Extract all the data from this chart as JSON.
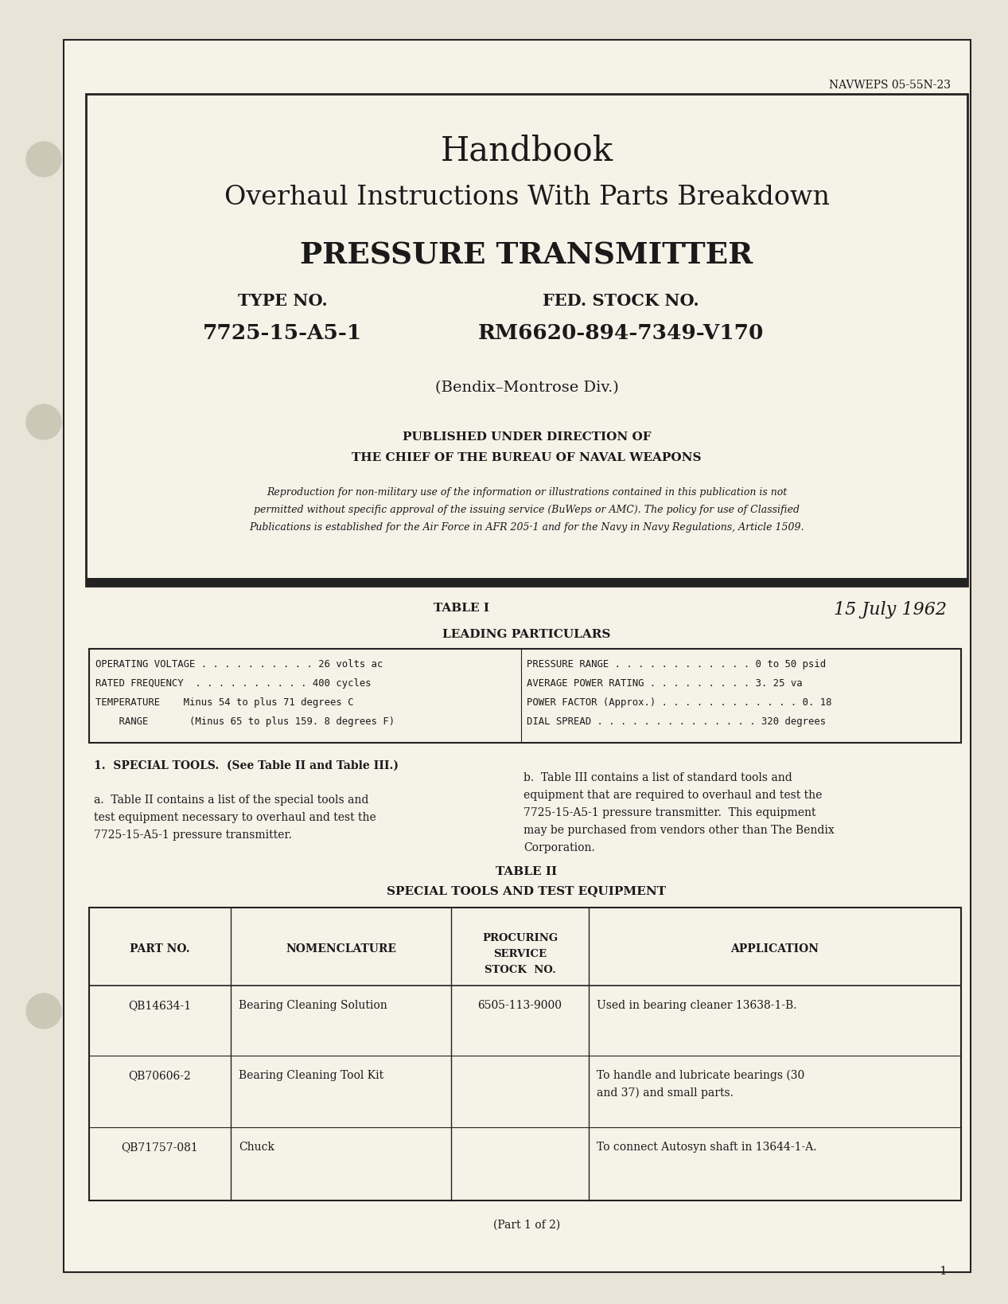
{
  "bg_color": "#e8e4d8",
  "page_bg": "#f5f2e8",
  "text_color": "#1a1a1a",
  "navweps": "NAVWEPS 05-55N-23",
  "title1": "Handbook",
  "title2": "Overhaul Instructions With Parts Breakdown",
  "title3": "PRESSURE TRANSMITTER",
  "type_label": "TYPE NO.",
  "type_value": "7725-15-A5-1",
  "stock_label": "FED. STOCK NO.",
  "stock_value": "RM6620-894-7349-V170",
  "div_line": "(Bendix–Montrose Div.)",
  "pub_line1": "PUBLISHED UNDER DIRECTION OF",
  "pub_line2": "THE CHIEF OF THE BUREAU OF NAVAL WEAPONS",
  "repro_line1": "Reproduction for non-military use of the information or illustrations contained in this publication is not",
  "repro_line2": "permitted without specific approval of the issuing service (BuWeps or AMC). The policy for use of Classified",
  "repro_line3": "Publications is established for the Air Force in AFR 205·1 and for the Navy in Navy Regulations, Article 1509.",
  "table1_label": "TABLE I",
  "date": "15 July 1962",
  "leading_particulars": "LEADING PARTICULARS",
  "lp_left": [
    "OPERATING VOLTAGE . . . . . . . . . . 26 volts ac",
    "RATED FREQUENCY  . . . . . . . . . . 400 cycles",
    "TEMPERATURE    Minus 54 to plus 71 degrees C",
    "    RANGE       (Minus 65 to plus 159. 8 degrees F)"
  ],
  "lp_right": [
    "PRESSURE RANGE . . . . . . . . . . . . 0 to 50 psid",
    "AVERAGE POWER RATING . . . . . . . . . 3. 25 va",
    "POWER FACTOR (Approx.) . . . . . . . . . . . . 0. 18",
    "DIAL SPREAD . . . . . . . . . . . . . . 320 degrees"
  ],
  "special_tools_heading": "1.  SPECIAL TOOLS.  (See Table II and Table III.)",
  "para_a_lines": [
    "a.  Table II contains a list of the special tools and",
    "test equipment necessary to overhaul and test the",
    "7725-15-A5-1 pressure transmitter."
  ],
  "para_b_lines": [
    "b.  Table III contains a list of standard tools and",
    "equipment that are required to overhaul and test the",
    "7725-15-A5-1 pressure transmitter.  This equipment",
    "may be purchased from vendors other than The Bendix",
    "Corporation."
  ],
  "table2_label": "TABLE II",
  "table2_subtitle": "SPECIAL TOOLS AND TEST EQUIPMENT",
  "table2_headers": [
    "PART NO.",
    "NOMENCLATURE",
    "PROCURING\nSERVICE\nSTOCK  NO.",
    "APPLICATION"
  ],
  "table2_rows": [
    [
      "QB14634-1",
      "Bearing Cleaning Solution",
      "6505-113-9000",
      "Used in bearing cleaner 13638-1-B."
    ],
    [
      "QB70606-2",
      "Bearing Cleaning Tool Kit",
      "",
      "To handle and lubricate bearings (30\nand 37) and small parts."
    ],
    [
      "QB71757-081",
      "Chuck",
      "",
      "To connect Autosyn shaft in 13644-1-A."
    ]
  ],
  "part1of2": "(Part 1 of 2)",
  "page_num": "1"
}
